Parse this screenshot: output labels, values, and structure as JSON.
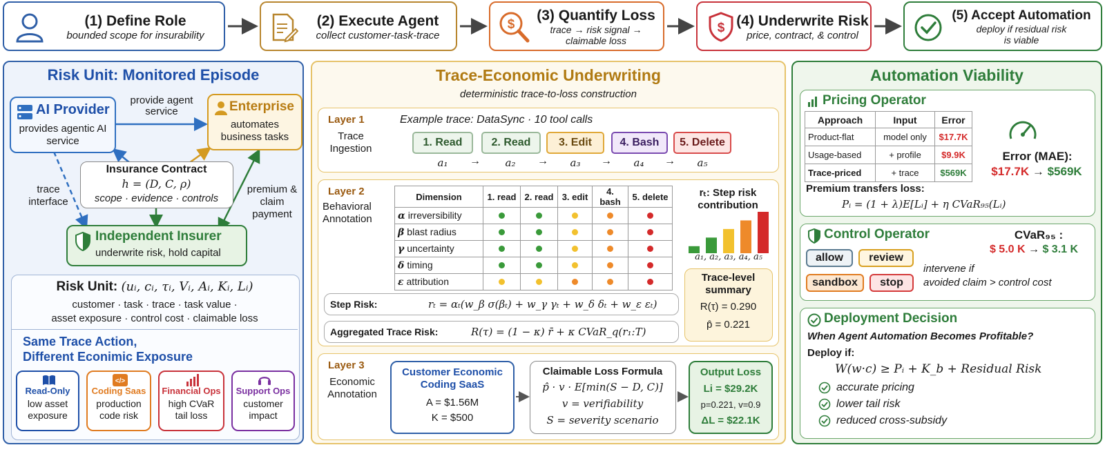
{
  "pipeline": [
    {
      "title": "(1) Define Role",
      "sub": "bounded scope for insurability",
      "color": "#2f5fa7",
      "icon": "person-icon"
    },
    {
      "title": "(2) Execute Agent",
      "sub": "collect customer-task-trace",
      "color": "#b8862e",
      "icon": "document-pen-icon"
    },
    {
      "title": "(3) Quantify Loss",
      "sub": "trace → risk signal → claimable loss",
      "color": "#d86b2a",
      "icon": "magnifier-dollar-icon"
    },
    {
      "title": "(4) Underwrite Risk",
      "sub": "price, contract, & control",
      "color": "#c8323a",
      "icon": "shield-dollar-icon"
    },
    {
      "title": "(5) Accept Automation",
      "sub": "deploy if residual risk is viable",
      "color": "#2e7d3a",
      "icon": "check-circle-icon"
    }
  ],
  "left": {
    "title": "Risk Unit: Monitored Episode",
    "provider": {
      "title": "AI Provider",
      "desc": "provides agentic AI service"
    },
    "enterprise": {
      "title": "Enterprise",
      "desc": "automates business tasks"
    },
    "arrow_service": "provide agent service",
    "contract": {
      "title": "Insurance Contract",
      "formula": "h = (D, C, ρ)",
      "desc": "scope · evidence · controls"
    },
    "trace_interface": "trace interface",
    "premium": "premium & claim payment",
    "insurer": {
      "title": "Independent Insurer",
      "desc": "underwrite risk, hold capital"
    },
    "risk_unit": {
      "label": "Risk Unit:",
      "formula": "(uᵢ, cᵢ, τᵢ, Vᵢ, Aᵢ, Kᵢ, Lᵢ)",
      "desc1": "customer · task · trace · task value ·",
      "desc2": "asset exposure · control cost · claimable loss"
    },
    "same_trace": "Same Trace Action,",
    "diff_exposure": "Different Econimic Exposure",
    "exposures": [
      {
        "title": "Read-Only",
        "desc": "low asset exposure",
        "color": "#1e4fa8",
        "icon": "book-icon"
      },
      {
        "title": "Coding Saas",
        "desc": "production code risk",
        "color": "#e07b20",
        "icon": "code-icon"
      },
      {
        "title": "Financial Ops",
        "desc": "high CVaR tail loss",
        "color": "#c8323a",
        "icon": "bar-chart-icon"
      },
      {
        "title": "Support Ops",
        "desc": "customer impact",
        "color": "#7a2fa0",
        "icon": "headset-icon"
      }
    ]
  },
  "middle": {
    "title": "Trace-Economic Underwriting",
    "subtitle": "deterministic trace-to-loss construction",
    "layer1": {
      "label": "Layer 1",
      "name": "Trace Ingestion",
      "example": "Example trace: DataSync · 10 tool calls",
      "steps": [
        {
          "label": "1. Read",
          "var": "a₁"
        },
        {
          "label": "2. Read",
          "var": "a₂"
        },
        {
          "label": "3. Edit",
          "var": "a₃"
        },
        {
          "label": "4. Bash",
          "var": "a₄"
        },
        {
          "label": "5. Delete",
          "var": "a₅"
        }
      ],
      "arrow": "→"
    },
    "layer2": {
      "label": "Layer 2",
      "name": "Behavioral Annotation",
      "headers": [
        "Dimension",
        "1. read",
        "2. read",
        "3. edit",
        "4. bash",
        "5. delete"
      ],
      "rows": [
        {
          "sym": "α",
          "name": "irreversibility",
          "dots": [
            "#3a9a3a",
            "#3a9a3a",
            "#f2c12e",
            "#ee8a2a",
            "#d42a2a"
          ]
        },
        {
          "sym": "β",
          "name": "blast radius",
          "dots": [
            "#3a9a3a",
            "#3a9a3a",
            "#f2c12e",
            "#ee8a2a",
            "#d42a2a"
          ]
        },
        {
          "sym": "γ",
          "name": "uncertainty",
          "dots": [
            "#3a9a3a",
            "#3a9a3a",
            "#f2c12e",
            "#ee8a2a",
            "#d42a2a"
          ]
        },
        {
          "sym": "δ",
          "name": "timing",
          "dots": [
            "#3a9a3a",
            "#3a9a3a",
            "#f2c12e",
            "#ee8a2a",
            "#d42a2a"
          ]
        },
        {
          "sym": "ε",
          "name": "attribution",
          "dots": [
            "#f2c12e",
            "#f2c12e",
            "#ee8a2a",
            "#ee8a2a",
            "#d42a2a"
          ]
        }
      ],
      "step_title": "rₜ: Step risk contribution",
      "bar_labels": "a₁, a₂, a₃, a₄, a₅",
      "step_risk_label": "Step Risk:",
      "step_risk_formula": "rₜ = αₜ(w_β σ(βₜ) + w_γ γₜ + w_δ δₜ + w_ε εₜ)",
      "agg_label": "Aggregated Trace Risk:",
      "agg_formula": "R(τ) = (1 − κ) r̄ + κ CVaR_q(r₁:T)",
      "summary_title": "Trace-level summary",
      "summary_r": "R(τ) = 0.290",
      "summary_p": "p̂ = 0.221"
    },
    "layer3": {
      "label": "Layer 3",
      "name": "Economic Annotation",
      "customer_title": "Customer Economic Coding SaaS",
      "customer_a": "A = $1.56M",
      "customer_k": "K = $500",
      "formula_title": "Claimable Loss Formula",
      "formula_main": "p̂ · v · E[min(S − D, C)]",
      "formula_v": "v = verifiability",
      "formula_s": "S = severity scenario",
      "output_title": "Output Loss",
      "output_li": "Li = $29.2K",
      "output_pv": "p=0.221, v=0.9",
      "output_dl": "ΔL = $22.1K"
    }
  },
  "right": {
    "title": "Automation Viability",
    "pricing": {
      "title": "Pricing Operator",
      "headers": [
        "Approach",
        "Input",
        "Error"
      ],
      "rows": [
        {
          "approach": "Product-flat",
          "input": "model only",
          "error": "$17.7K",
          "color": "#d42a2a"
        },
        {
          "approach": "Usage-based",
          "input": "+ profile",
          "error": "$9.9K",
          "color": "#d42a2a"
        },
        {
          "approach": "Trace-priced",
          "input": "+ trace",
          "error": "$569K",
          "color": "#2e7d3a"
        }
      ],
      "mae_label": "Error (MAE):",
      "mae_from": "$17.7K",
      "mae_arrow": "→",
      "mae_to": "$569K",
      "premium_label": "Premium transfers loss:",
      "premium_formula": "Pᵢ = (1 + λ)E[Lᵢ] + η CVaR₉₅(Lᵢ)"
    },
    "control": {
      "title": "Control Operator",
      "cvar_label": "CVaR₉₅ :",
      "cvar_from": "$ 5.0 K",
      "cvar_arrow": "→",
      "cvar_to": "$ 3.1 K",
      "chips": [
        {
          "label": "allow",
          "color": "#5a7a90",
          "bg": "#eef3f6"
        },
        {
          "label": "review",
          "color": "#d8a020",
          "bg": "#fff6e0"
        },
        {
          "label": "sandbox",
          "color": "#e07b20",
          "bg": "#fde8d2"
        },
        {
          "label": "stop",
          "color": "#d43a3a",
          "bg": "#fde4e4"
        }
      ],
      "note1": "intervene if",
      "note2": "avoided claim > control cost"
    },
    "deploy": {
      "title": "Deployment Decision",
      "question": "When Agent Automation Becomes Profitable?",
      "deploy_if": "Deploy if:",
      "formula": "W(w·c) ≥ Pᵢ + K_b + Residual Risk",
      "benefits": [
        "accurate pricing",
        "lower tail risk",
        "reduced cross-subsidy"
      ]
    }
  }
}
